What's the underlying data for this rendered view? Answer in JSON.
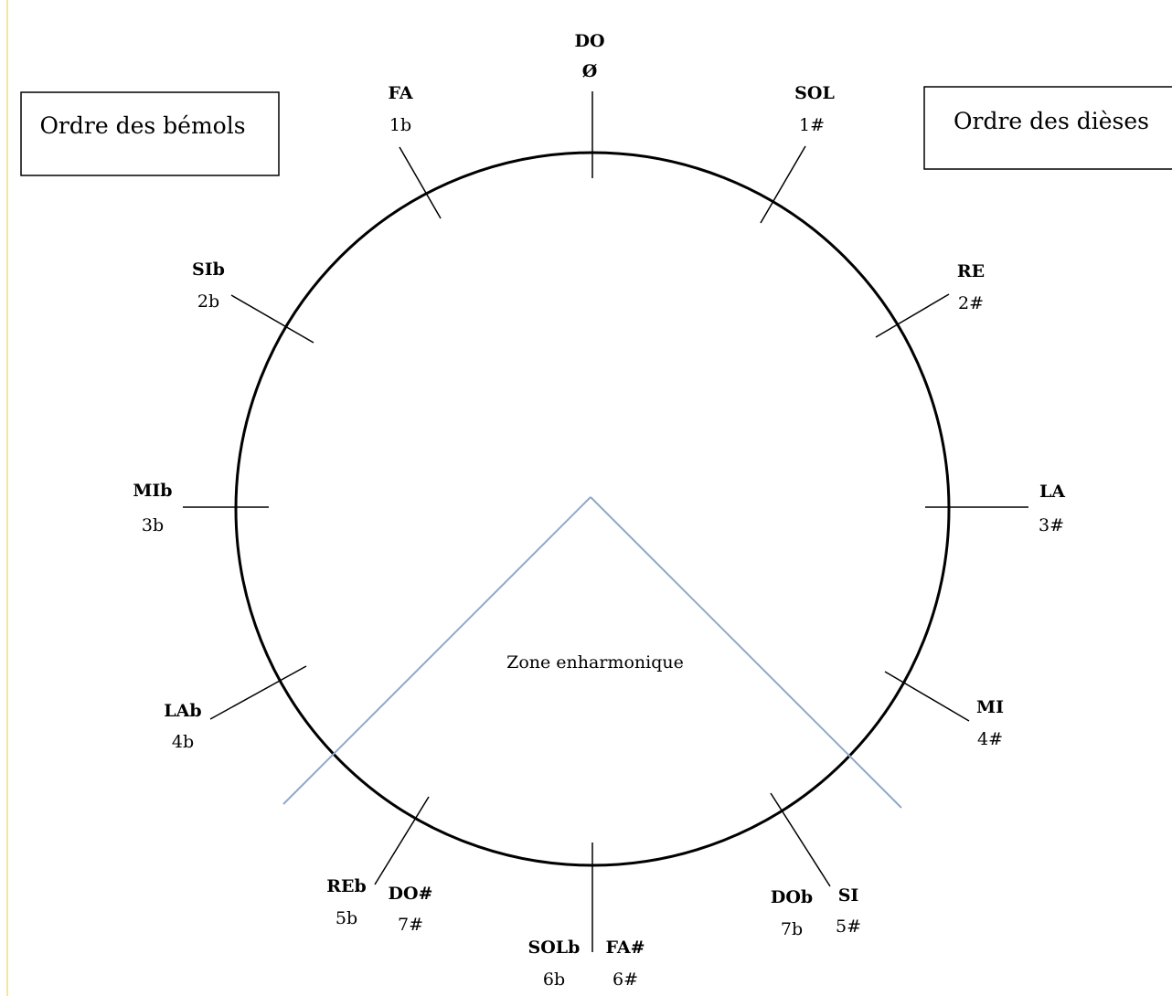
{
  "colors": {
    "circle": "#000000",
    "zone_lines": "#8ea9c8",
    "left_border": "#f2e6a0"
  },
  "boxes": {
    "flats": "Ordre des bémols",
    "sharps": "Ordre des dièses"
  },
  "zone_label": "Zone enharmonique",
  "positions": {
    "do": {
      "name": "DO",
      "count": "Ø"
    },
    "sol": {
      "name": "SOL",
      "count": "1#"
    },
    "re": {
      "name": "RE",
      "count": "2#"
    },
    "la": {
      "name": "LA",
      "count": "3#"
    },
    "mi": {
      "name": "MI",
      "count": "4#"
    },
    "si": {
      "name": "SI",
      "count": "5#"
    },
    "dob": {
      "name": "DOb",
      "count": "7b"
    },
    "fasharp": {
      "name": "FA#",
      "count": "6#"
    },
    "solb": {
      "name": "SOLb",
      "count": "6b"
    },
    "dosharp": {
      "name": "DO#",
      "count": "7#"
    },
    "reb": {
      "name": "REb",
      "count": "5b"
    },
    "lab": {
      "name": "LAb",
      "count": "4b"
    },
    "mib": {
      "name": "MIb",
      "count": "3b"
    },
    "sib": {
      "name": "SIb",
      "count": "2b"
    },
    "fa": {
      "name": "FA",
      "count": "1b"
    }
  }
}
